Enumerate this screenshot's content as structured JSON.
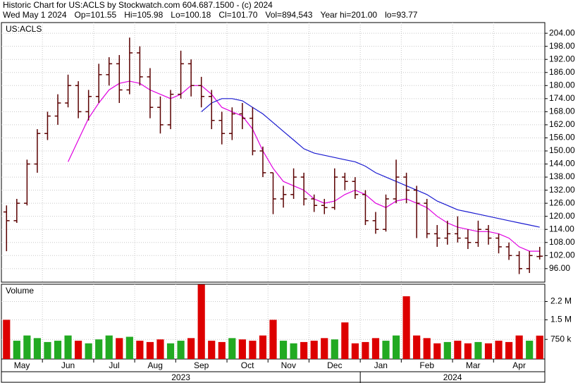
{
  "chart_data": {
    "type": "ohlc",
    "title": "Historic Chart for US:ACLS by Stockwatch.com 604.687.1500 - (c) 2024",
    "quote": [
      "Wed May  1 2024",
      "Op=101.55",
      "Hi=105.98",
      "Lo=100.18",
      "Cl=101.70",
      "Vol=894,543",
      "Year hi=201.00",
      "lo=93.77"
    ],
    "symbol": "US:ACLS",
    "categories": [
      "May",
      null,
      null,
      null,
      "Jun",
      null,
      null,
      null,
      null,
      "Jul",
      null,
      null,
      null,
      "Aug",
      null,
      null,
      null,
      "Sep",
      null,
      null,
      null,
      null,
      "Oct",
      null,
      null,
      null,
      "Nov",
      null,
      null,
      null,
      "Dec",
      null,
      null,
      null,
      null,
      "Jan",
      null,
      null,
      null,
      "Feb",
      null,
      null,
      null,
      null,
      "Mar",
      null,
      null,
      null,
      "Apr",
      null,
      null,
      null,
      null
    ],
    "years": [
      "2023",
      "2024"
    ],
    "open": [
      122,
      118,
      126,
      144,
      158,
      166,
      172,
      180,
      168,
      175,
      185,
      190,
      178,
      195,
      184,
      170,
      162,
      176,
      190,
      180,
      175,
      164,
      158,
      167,
      165,
      150,
      140,
      128,
      130,
      138,
      128,
      125,
      124,
      138,
      136,
      130,
      118,
      114,
      128,
      138,
      132,
      126,
      112,
      110,
      112,
      110,
      108,
      114,
      110,
      106,
      102,
      96,
      101.55
    ],
    "high": [
      125,
      128,
      146,
      160,
      168,
      176,
      185,
      182,
      178,
      190,
      193,
      194,
      202,
      198,
      188,
      175,
      178,
      196,
      192,
      184,
      178,
      168,
      170,
      172,
      170,
      152,
      140,
      134,
      142,
      140,
      130,
      128,
      142,
      140,
      138,
      132,
      122,
      130,
      146,
      140,
      134,
      128,
      116,
      118,
      120,
      114,
      118,
      116,
      112,
      108,
      104,
      104,
      105.98
    ],
    "low": [
      104,
      117,
      125,
      140,
      155,
      162,
      170,
      165,
      164,
      172,
      180,
      172,
      176,
      180,
      165,
      158,
      160,
      174,
      175,
      170,
      160,
      153,
      155,
      160,
      148,
      138,
      121,
      124,
      128,
      125,
      122,
      121,
      123,
      132,
      128,
      116,
      112,
      113,
      126,
      126,
      110,
      110,
      106,
      107,
      108,
      105,
      106,
      107,
      103,
      100,
      93.5,
      94,
      100.18
    ],
    "close": [
      118,
      126,
      144,
      158,
      166,
      172,
      180,
      168,
      175,
      185,
      190,
      178,
      195,
      184,
      170,
      162,
      176,
      190,
      180,
      175,
      164,
      158,
      167,
      165,
      150,
      140,
      128,
      130,
      138,
      128,
      125,
      124,
      138,
      136,
      130,
      118,
      114,
      128,
      138,
      132,
      126,
      112,
      110,
      112,
      110,
      108,
      114,
      110,
      106,
      102,
      96,
      102,
      101.7
    ],
    "bar_color": "#5a0000",
    "lines": [
      {
        "color": "#e000e0",
        "values": [
          null,
          null,
          null,
          null,
          null,
          null,
          145,
          155,
          165,
          172,
          178,
          181,
          182,
          181,
          178,
          176,
          174,
          176,
          180,
          180,
          176,
          170,
          168,
          166,
          160,
          150,
          142,
          136,
          134,
          132,
          128,
          126,
          127,
          130,
          132,
          130,
          126,
          124,
          127,
          128,
          126,
          124,
          120,
          117,
          115,
          114,
          113,
          113,
          112,
          110,
          106,
          104,
          104
        ]
      },
      {
        "color": "#1a1ad0",
        "values": [
          null,
          null,
          null,
          null,
          null,
          null,
          null,
          null,
          null,
          null,
          null,
          null,
          null,
          null,
          null,
          null,
          null,
          null,
          null,
          168,
          172,
          174,
          174,
          173,
          170,
          167,
          163,
          159,
          155,
          151,
          149,
          148,
          147,
          146,
          145,
          143,
          140,
          138,
          136,
          134,
          132,
          130,
          127,
          125,
          123,
          122,
          121,
          120,
          119,
          118,
          117,
          116,
          115
        ]
      }
    ],
    "ylim": [
      89.8,
      208.9
    ],
    "yticks": [
      {
        "value": 96,
        "label": "96.00"
      },
      {
        "value": 102,
        "label": "102.00"
      },
      {
        "value": 108,
        "label": "108.00"
      },
      {
        "value": 114,
        "label": "114.00"
      },
      {
        "value": 120,
        "label": "120.00"
      },
      {
        "value": 126,
        "label": "126.00"
      },
      {
        "value": 132,
        "label": "132.00"
      },
      {
        "value": 138,
        "label": "138.00"
      },
      {
        "value": 144,
        "label": "144.00"
      },
      {
        "value": 150,
        "label": "150.00"
      },
      {
        "value": 156,
        "label": "156.00"
      },
      {
        "value": 162,
        "label": "162.00"
      },
      {
        "value": 168,
        "label": "168.00"
      },
      {
        "value": 174,
        "label": "174.00"
      },
      {
        "value": 180,
        "label": "180.00"
      },
      {
        "value": 186,
        "label": "186.00"
      },
      {
        "value": 192,
        "label": "192.00"
      },
      {
        "value": 198,
        "label": "198.00"
      },
      {
        "value": 204,
        "label": "204.00"
      }
    ],
    "grid": true,
    "volume": {
      "label": "Volume",
      "values": [
        1500000,
        700000,
        900000,
        800000,
        650000,
        700000,
        900000,
        700000,
        600000,
        750000,
        900000,
        800000,
        850000,
        700000,
        650000,
        750000,
        600000,
        700000,
        800000,
        2850000,
        700000,
        650000,
        800000,
        750000,
        700000,
        900000,
        1500000,
        700000,
        600000,
        650000,
        700000,
        800000,
        750000,
        1400000,
        600000,
        650000,
        800000,
        700000,
        900000,
        2400000,
        900000,
        800000,
        600000,
        650000,
        700000,
        600000,
        650000,
        600000,
        700000,
        650000,
        900000,
        700000,
        894543
      ],
      "up_color": "#22aa22",
      "down_color": "#dd0000",
      "vlim": [
        0,
        2860000
      ],
      "vticks": [
        {
          "value": 750000,
          "label": "750 k"
        },
        {
          "value": 1500000,
          "label": "1.5 M"
        },
        {
          "value": 2200000,
          "label": "2.2 M"
        }
      ]
    }
  }
}
